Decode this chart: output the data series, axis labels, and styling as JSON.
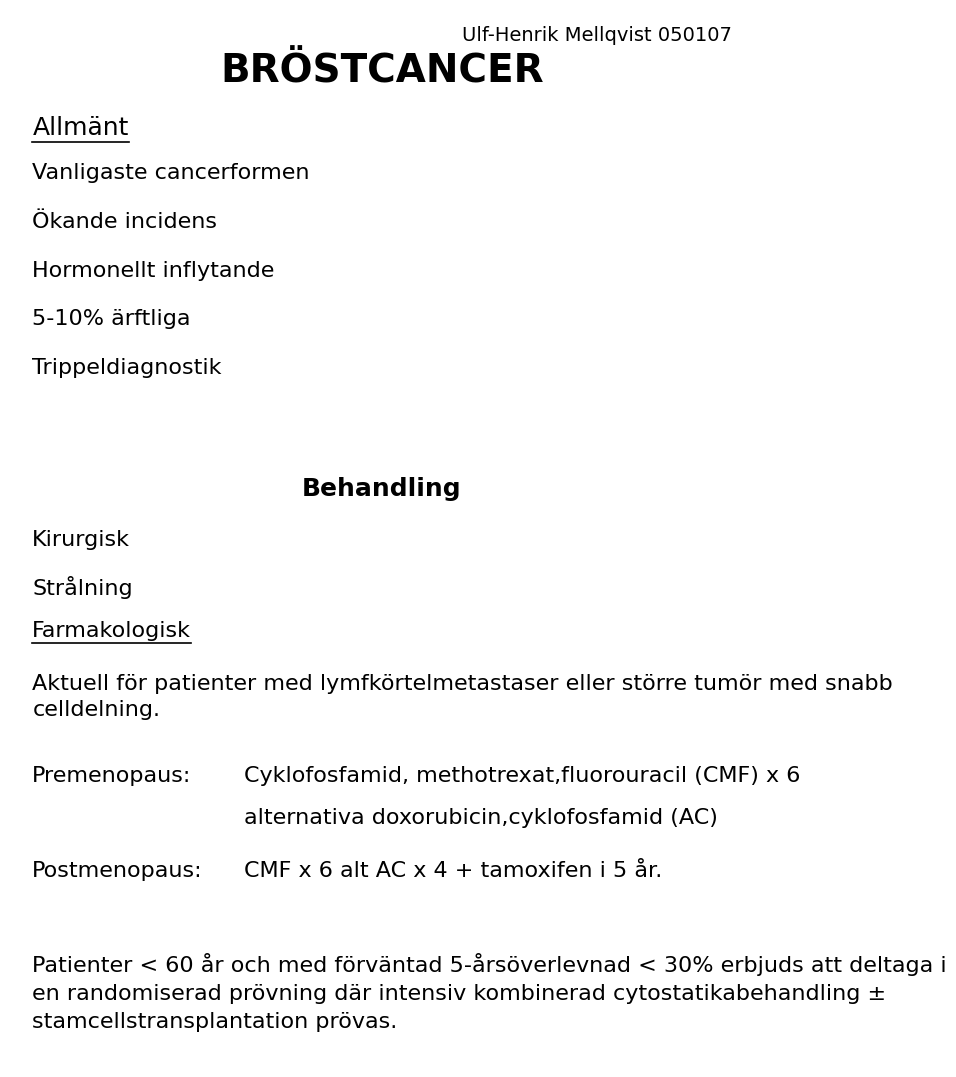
{
  "bg_color": "#ffffff",
  "text_color": "#000000",
  "header_right": "Ulf-Henrik Mellqvist 050107",
  "title": "BRÖSTCANCER",
  "section1_heading": "Allmänt",
  "section1_items": [
    "Vanligaste cancerformen",
    "Ökande incidens",
    "Hormonellt inflytande",
    "5-10% ärftliga",
    "Trippeldiagnostik"
  ],
  "section2_heading": "Behandling",
  "section2_items": [
    "Kirurgisk",
    "Strålning"
  ],
  "section2_underline": "Farmakologisk",
  "section2_body": "Aktuell för patienter med lymfkörtelmetastaser eller större tumör med snabb\ncelldelning.",
  "premenopaus_label": "Premenopaus:",
  "premenopaus_line1": "Cyklofosfamid, methotrexat,fluorouracil (CMF) x 6",
  "premenopaus_line2": "alternativa doxorubicin,cyklofosfamid (AC)",
  "postmenopaus_label": "Postmenopaus:",
  "postmenopaus_text": "CMF x 6 alt AC x 4 + tamoxifen i 5 år.",
  "footer_text": "Patienter < 60 år och med förväntad 5-årsöverlevnad < 30% erbjuds att deltaga i\nen randomiserad prövning där intensiv kombinerad cytostatikabehandling ±\nstamcellstransplantation prövas.",
  "font_family": "DejaVu Sans",
  "title_fontsize": 28,
  "heading_fontsize": 18,
  "body_fontsize": 16,
  "header_fontsize": 14,
  "underline_texts": [
    "Allmänt",
    "Farmakologisk"
  ]
}
